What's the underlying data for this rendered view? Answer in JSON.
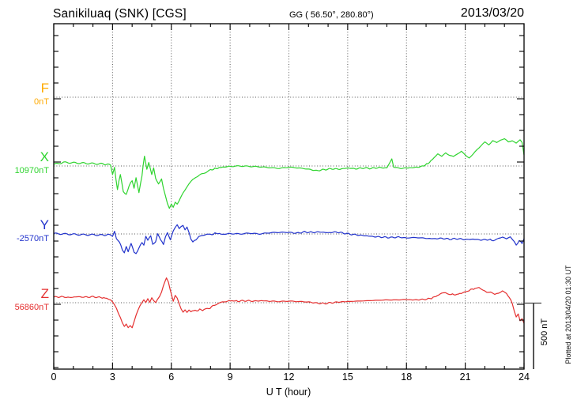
{
  "header": {
    "station_title": "Sanikiluaq (SNK)  [CGS]",
    "gg_coordinates": "GG ( 56.50°, 280.80°)",
    "date": "2013/03/20"
  },
  "footer": {
    "plotted_at": "Plotted at 2013/04/20 01:30 UT"
  },
  "scale_bar": {
    "label": "500 nT",
    "span_nT": 500
  },
  "chart_data": {
    "type": "line",
    "title": "Sanikiluaq (SNK) [CGS] magnetogram for 2013/03/20",
    "xlabel": "U T (hour)",
    "ylabel": "",
    "x_range": [
      0,
      24
    ],
    "x_ticks": [
      0,
      3,
      6,
      9,
      12,
      15,
      18,
      21,
      24
    ],
    "x_minor_tick_hours": 1,
    "grid": "dotted vertical lines every 3 hours; dotted horizontal line at each component baseline",
    "legend_position": "left margin, one colored label per component",
    "scale_note": "vertical scale bar at right equals 500 nT",
    "series": [
      {
        "name": "F",
        "baseline_label": "0nT",
        "baseline_nT": 0,
        "color": "#FFAA00",
        "points": []
      },
      {
        "name": "X",
        "baseline_label": "10970nT",
        "baseline_nT": 10970,
        "color": "#2FD42F",
        "points": [
          [
            0,
            12
          ],
          [
            0.5,
            27
          ],
          [
            1,
            24
          ],
          [
            1.5,
            21
          ],
          [
            2,
            18
          ],
          [
            2.5,
            15
          ],
          [
            2.9,
            9
          ],
          [
            3.0,
            -65
          ],
          [
            3.1,
            -12
          ],
          [
            3.25,
            -179
          ],
          [
            3.4,
            -60
          ],
          [
            3.55,
            -196
          ],
          [
            3.7,
            -214
          ],
          [
            3.85,
            -149
          ],
          [
            4.0,
            -107
          ],
          [
            4.1,
            -167
          ],
          [
            4.2,
            -89
          ],
          [
            4.35,
            -202
          ],
          [
            4.5,
            -71
          ],
          [
            4.63,
            77
          ],
          [
            4.75,
            -30
          ],
          [
            4.85,
            24
          ],
          [
            5.0,
            -60
          ],
          [
            5.1,
            -12
          ],
          [
            5.2,
            -95
          ],
          [
            5.35,
            -137
          ],
          [
            5.5,
            -95
          ],
          [
            5.6,
            -167
          ],
          [
            5.7,
            -226
          ],
          [
            5.8,
            -286
          ],
          [
            5.9,
            -321
          ],
          [
            6.0,
            -286
          ],
          [
            6.1,
            -310
          ],
          [
            6.2,
            -274
          ],
          [
            6.3,
            -292
          ],
          [
            6.45,
            -244
          ],
          [
            6.6,
            -202
          ],
          [
            6.8,
            -161
          ],
          [
            7.0,
            -119
          ],
          [
            7.25,
            -83
          ],
          [
            7.5,
            -65
          ],
          [
            7.75,
            -48
          ],
          [
            8.0,
            -30
          ],
          [
            8.3,
            -18
          ],
          [
            8.6,
            -9
          ],
          [
            9.0,
            -3
          ],
          [
            9.5,
            0
          ],
          [
            10,
            -3
          ],
          [
            10.5,
            -6
          ],
          [
            11,
            -12
          ],
          [
            11.5,
            -18
          ],
          [
            12,
            -9
          ],
          [
            12.5,
            -15
          ],
          [
            13,
            -24
          ],
          [
            13.4,
            -36
          ],
          [
            13.8,
            -27
          ],
          [
            14.2,
            -21
          ],
          [
            14.6,
            -24
          ],
          [
            15,
            -15
          ],
          [
            15.4,
            -21
          ],
          [
            15.8,
            -15
          ],
          [
            16.2,
            -18
          ],
          [
            16.6,
            -12
          ],
          [
            17,
            -15
          ],
          [
            17.25,
            54
          ],
          [
            17.35,
            -6
          ],
          [
            17.6,
            -18
          ],
          [
            18,
            -15
          ],
          [
            18.4,
            -12
          ],
          [
            18.8,
            -3
          ],
          [
            19.1,
            18
          ],
          [
            19.4,
            60
          ],
          [
            19.6,
            95
          ],
          [
            19.8,
            71
          ],
          [
            20,
            101
          ],
          [
            20.2,
            83
          ],
          [
            20.4,
            71
          ],
          [
            20.6,
            95
          ],
          [
            20.8,
            113
          ],
          [
            21,
            83
          ],
          [
            21.2,
            65
          ],
          [
            21.4,
            89
          ],
          [
            21.6,
            125
          ],
          [
            21.8,
            155
          ],
          [
            22,
            179
          ],
          [
            22.2,
            161
          ],
          [
            22.4,
            190
          ],
          [
            22.6,
            173
          ],
          [
            22.8,
            196
          ],
          [
            23,
            202
          ],
          [
            23.2,
            179
          ],
          [
            23.4,
            190
          ],
          [
            23.6,
            167
          ],
          [
            23.8,
            196
          ],
          [
            23.9,
            179
          ],
          [
            24,
            83
          ]
        ]
      },
      {
        "name": "Y",
        "baseline_label": "-2570nT",
        "baseline_nT": -2570,
        "color": "#2233CC",
        "points": [
          [
            0,
            3
          ],
          [
            0.5,
            0
          ],
          [
            1,
            -3
          ],
          [
            1.5,
            -6
          ],
          [
            2,
            -6
          ],
          [
            2.5,
            -9
          ],
          [
            2.9,
            -6
          ],
          [
            3.0,
            -18
          ],
          [
            3.1,
            18
          ],
          [
            3.2,
            -36
          ],
          [
            3.35,
            -60
          ],
          [
            3.5,
            -119
          ],
          [
            3.6,
            -143
          ],
          [
            3.7,
            -95
          ],
          [
            3.8,
            -131
          ],
          [
            3.95,
            -71
          ],
          [
            4.1,
            -137
          ],
          [
            4.2,
            -149
          ],
          [
            4.35,
            -107
          ],
          [
            4.5,
            -60
          ],
          [
            4.6,
            -83
          ],
          [
            4.7,
            -18
          ],
          [
            4.8,
            -48
          ],
          [
            4.95,
            -12
          ],
          [
            5.05,
            -77
          ],
          [
            5.2,
            -60
          ],
          [
            5.3,
            0
          ],
          [
            5.45,
            -42
          ],
          [
            5.6,
            -77
          ],
          [
            5.7,
            -24
          ],
          [
            5.8,
            6
          ],
          [
            5.95,
            -42
          ],
          [
            6.1,
            24
          ],
          [
            6.2,
            48
          ],
          [
            6.3,
            65
          ],
          [
            6.4,
            36
          ],
          [
            6.5,
            54
          ],
          [
            6.6,
            65
          ],
          [
            6.7,
            30
          ],
          [
            6.8,
            48
          ],
          [
            6.9,
            6
          ],
          [
            7.0,
            -42
          ],
          [
            7.1,
            -60
          ],
          [
            7.25,
            -42
          ],
          [
            7.4,
            -24
          ],
          [
            7.6,
            -12
          ],
          [
            7.8,
            -3
          ],
          [
            8,
            -6
          ],
          [
            8.3,
            6
          ],
          [
            8.6,
            -3
          ],
          [
            9,
            3
          ],
          [
            9.5,
            0
          ],
          [
            10,
            6
          ],
          [
            10.5,
            0
          ],
          [
            11,
            9
          ],
          [
            11.5,
            12
          ],
          [
            12,
            12
          ],
          [
            12.4,
            6
          ],
          [
            12.8,
            15
          ],
          [
            13.2,
            12
          ],
          [
            13.6,
            15
          ],
          [
            14,
            9
          ],
          [
            14.4,
            15
          ],
          [
            14.8,
            6
          ],
          [
            15.2,
            -3
          ],
          [
            15.6,
            -9
          ],
          [
            16,
            -15
          ],
          [
            16.4,
            -21
          ],
          [
            16.8,
            -24
          ],
          [
            17.2,
            -27
          ],
          [
            17.6,
            -24
          ],
          [
            18,
            -30
          ],
          [
            18.5,
            -27
          ],
          [
            19,
            -33
          ],
          [
            19.4,
            -36
          ],
          [
            19.8,
            -33
          ],
          [
            20.2,
            -39
          ],
          [
            20.6,
            -36
          ],
          [
            21,
            -42
          ],
          [
            21.4,
            -39
          ],
          [
            21.8,
            -45
          ],
          [
            22.2,
            -42
          ],
          [
            22.5,
            -51
          ],
          [
            22.7,
            -33
          ],
          [
            22.9,
            -24
          ],
          [
            23.1,
            -42
          ],
          [
            23.3,
            -21
          ],
          [
            23.5,
            -60
          ],
          [
            23.6,
            -89
          ],
          [
            23.75,
            -48
          ],
          [
            23.9,
            -71
          ],
          [
            24,
            -36
          ]
        ]
      },
      {
        "name": "Z",
        "baseline_label": "56860nT",
        "baseline_nT": 56860,
        "color": "#E53030",
        "points": [
          [
            0,
            42
          ],
          [
            0.4,
            45
          ],
          [
            0.8,
            39
          ],
          [
            1.2,
            45
          ],
          [
            1.6,
            42
          ],
          [
            2,
            45
          ],
          [
            2.4,
            39
          ],
          [
            2.7,
            33
          ],
          [
            2.9,
            24
          ],
          [
            3.0,
            6
          ],
          [
            3.1,
            -18
          ],
          [
            3.2,
            -42
          ],
          [
            3.3,
            -77
          ],
          [
            3.4,
            -107
          ],
          [
            3.5,
            -149
          ],
          [
            3.6,
            -179
          ],
          [
            3.7,
            -161
          ],
          [
            3.8,
            -185
          ],
          [
            3.9,
            -167
          ],
          [
            4.0,
            -185
          ],
          [
            4.1,
            -143
          ],
          [
            4.2,
            -95
          ],
          [
            4.3,
            -54
          ],
          [
            4.4,
            -18
          ],
          [
            4.5,
            6
          ],
          [
            4.6,
            24
          ],
          [
            4.7,
            0
          ],
          [
            4.8,
            30
          ],
          [
            4.9,
            6
          ],
          [
            5.0,
            42
          ],
          [
            5.1,
            18
          ],
          [
            5.2,
            0
          ],
          [
            5.3,
            24
          ],
          [
            5.4,
            48
          ],
          [
            5.5,
            83
          ],
          [
            5.6,
            131
          ],
          [
            5.7,
            167
          ],
          [
            5.75,
            185
          ],
          [
            5.85,
            155
          ],
          [
            5.95,
            95
          ],
          [
            6.05,
            42
          ],
          [
            6.1,
            12
          ],
          [
            6.2,
            54
          ],
          [
            6.3,
            30
          ],
          [
            6.4,
            -12
          ],
          [
            6.5,
            -48
          ],
          [
            6.6,
            -71
          ],
          [
            6.7,
            -54
          ],
          [
            6.8,
            -77
          ],
          [
            6.9,
            -60
          ],
          [
            7.0,
            -71
          ],
          [
            7.15,
            -54
          ],
          [
            7.3,
            -65
          ],
          [
            7.45,
            -48
          ],
          [
            7.6,
            -60
          ],
          [
            7.75,
            -42
          ],
          [
            7.9,
            -48
          ],
          [
            8.05,
            -30
          ],
          [
            8.2,
            -18
          ],
          [
            8.4,
            -6
          ],
          [
            8.6,
            6
          ],
          [
            8.8,
            12
          ],
          [
            9.1,
            15
          ],
          [
            9.4,
            12
          ],
          [
            9.8,
            15
          ],
          [
            10.2,
            12
          ],
          [
            10.6,
            15
          ],
          [
            11,
            12
          ],
          [
            11.5,
            9
          ],
          [
            12,
            12
          ],
          [
            12.5,
            9
          ],
          [
            13,
            6
          ],
          [
            13.4,
            -3
          ],
          [
            13.8,
            -6
          ],
          [
            14.2,
            0
          ],
          [
            14.6,
            6
          ],
          [
            15,
            9
          ],
          [
            15.5,
            12
          ],
          [
            16,
            15
          ],
          [
            16.5,
            18
          ],
          [
            17,
            21
          ],
          [
            17.5,
            21
          ],
          [
            18,
            24
          ],
          [
            18.4,
            21
          ],
          [
            18.8,
            24
          ],
          [
            19.2,
            30
          ],
          [
            19.5,
            48
          ],
          [
            19.8,
            71
          ],
          [
            20,
            77
          ],
          [
            20.2,
            65
          ],
          [
            20.5,
            60
          ],
          [
            20.8,
            71
          ],
          [
            21,
            83
          ],
          [
            21.2,
            95
          ],
          [
            21.5,
            107
          ],
          [
            21.7,
            119
          ],
          [
            21.9,
            95
          ],
          [
            22.1,
            77
          ],
          [
            22.3,
            83
          ],
          [
            22.5,
            60
          ],
          [
            22.7,
            71
          ],
          [
            22.9,
            89
          ],
          [
            23.1,
            65
          ],
          [
            23.25,
            42
          ],
          [
            23.4,
            -6
          ],
          [
            23.5,
            -65
          ],
          [
            23.6,
            -113
          ],
          [
            23.7,
            -89
          ],
          [
            23.8,
            -137
          ],
          [
            23.9,
            -119
          ],
          [
            24,
            -155
          ]
        ]
      }
    ]
  }
}
